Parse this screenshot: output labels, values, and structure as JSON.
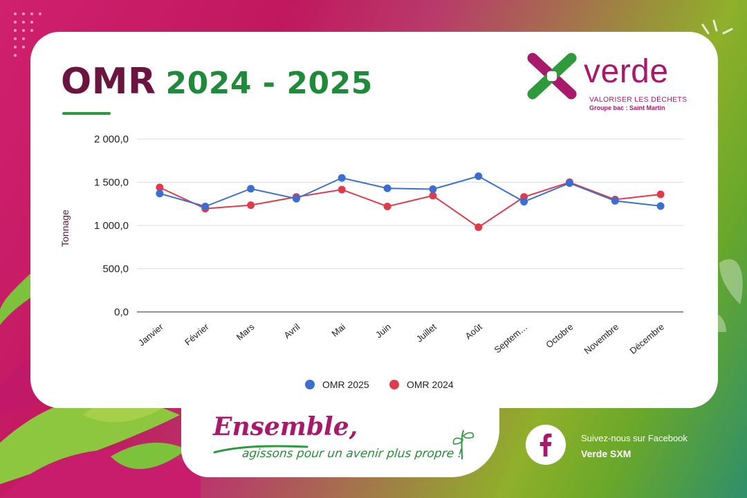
{
  "title": {
    "main": "OMR",
    "years": "2024 - 2025"
  },
  "logo": {
    "word": "verde",
    "tagline": "VALORISER LES DÉCHETS",
    "subline": "Groupe bac : Saint Martin"
  },
  "slogan": {
    "line1": "Ensemble,",
    "line2": "agissons pour un avenir plus propre !"
  },
  "facebook": {
    "line1": "Suivez-nous sur Facebook",
    "line2": "Verde SXM"
  },
  "colors": {
    "omr2025": "#3a6fd1",
    "omr2024": "#e03b4a",
    "brand_magenta": "#a8196b",
    "brand_green": "#1e8a3a"
  },
  "chart_data": {
    "type": "line",
    "title": "",
    "xlabel": "",
    "ylabel": "Tonnage",
    "ylim": [
      0,
      2000
    ],
    "yticks": [
      0,
      500,
      1000,
      1500,
      2000
    ],
    "ytick_labels": [
      "0,0",
      "500,0",
      "1 000,0",
      "1 500,0",
      "2 000,0"
    ],
    "grid": true,
    "legend_position": "bottom",
    "categories": [
      "Janvier",
      "Février",
      "Mars",
      "Avril",
      "Mai",
      "Juin",
      "Juillet",
      "Août",
      "Septem…",
      "Octobre",
      "Novembre",
      "Décembre"
    ],
    "series": [
      {
        "name": "OMR 2025",
        "color": "#3a6fd1",
        "values": [
          1370,
          1220,
          1425,
          1310,
          1550,
          1430,
          1420,
          1570,
          1275,
          1490,
          1285,
          1225
        ]
      },
      {
        "name": "OMR 2024",
        "color": "#e03b4a",
        "values": [
          1440,
          1195,
          1235,
          1330,
          1415,
          1220,
          1345,
          980,
          1330,
          1500,
          1300,
          1360
        ]
      }
    ]
  }
}
